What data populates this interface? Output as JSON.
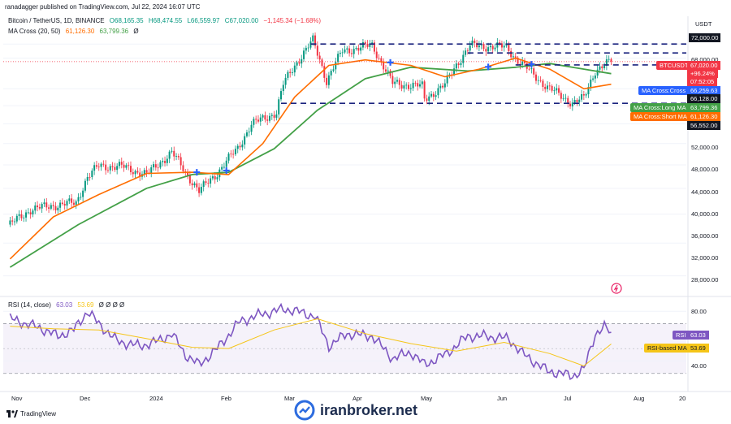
{
  "header": {
    "publisher_line": "ranadagger published on TradingView.com, Jul 22, 2024 16:07 UTC"
  },
  "legend": {
    "symbol": "Bitcoin / TetherUS, 1D, BINANCE",
    "o": "O68,165.35",
    "h": "H68,474.55",
    "l": "L66,559.97",
    "c": "C67,020.00",
    "chg": "−1,145.34 (−1.68%)",
    "ma_label": "MA Cross (20, 50)",
    "ma_short": "61,126.30",
    "ma_long": "63,799.36",
    "ma_extra": "Ø"
  },
  "rsi_legend": {
    "label": "RSI (14, close)",
    "rsi": "63.03",
    "rsi_ma": "53.69",
    "extra": "Ø Ø Ø Ø"
  },
  "currency": "USDT",
  "price_axis": [
    "72,000.00",
    "68,000.00",
    "60,000.00",
    "56,552.00",
    "52,000.00",
    "48,000.00",
    "44,000.00",
    "40,000.00",
    "36,000.00",
    "32,000.00",
    "28,000.00"
  ],
  "rsi_axis": [
    "80.00",
    "40.00"
  ],
  "time_axis": [
    "Nov",
    "Dec",
    "2024",
    "Feb",
    "Mar",
    "Apr",
    "May",
    "Jun",
    "Jul",
    "Aug",
    "20"
  ],
  "price_labels": {
    "btc_name": "BTCUSDT",
    "btc_price": "67,020.00",
    "btc_change": "+96.24%",
    "btc_time": "07:52:05",
    "ma_cross_name": "MA Cross:Cross",
    "ma_cross_value": "66,259.63",
    "level_66128": "66,128.00",
    "level_72000": "72,000.00",
    "level_56552": "56,552.00",
    "long_ma_name": "MA Cross:Long MA",
    "long_ma_value": "63,799.36",
    "short_ma_name": "MA Cross:Short MA",
    "short_ma_value": "61,126.30",
    "rsi_name": "RSI",
    "rsi_value": "63.03",
    "rsi_ma_name": "RSI-based MA",
    "rsi_ma_value": "53.69"
  },
  "footer": {
    "brand": "TradingView"
  },
  "watermark": "iranbroker.net",
  "colors": {
    "up": "#089981",
    "down": "#f23645",
    "short_ma": "#ff6d00",
    "long_ma": "#43a047",
    "rsi": "#7e57c2",
    "rsi_ma": "#f5c518",
    "level": "#1a237e",
    "cross": "#2962ff"
  },
  "chart_data": [
    {
      "type": "candlestick",
      "title": "Bitcoin / TetherUS, 1D, BINANCE",
      "x_range": [
        "2023-10-29",
        "2024-08-24"
      ],
      "ylim": [
        26000,
        78000
      ],
      "y_scale": "log",
      "close_path": [
        [
          "2023-11-01",
          34500
        ],
        [
          "2023-11-10",
          36700
        ],
        [
          "2023-11-20",
          37300
        ],
        [
          "2023-11-30",
          37700
        ],
        [
          "2023-12-05",
          41900
        ],
        [
          "2023-12-10",
          43800
        ],
        [
          "2023-12-20",
          43700
        ],
        [
          "2023-12-31",
          42300
        ],
        [
          "2024-01-11",
          46300
        ],
        [
          "2024-01-17",
          42700
        ],
        [
          "2024-01-23",
          39500
        ],
        [
          "2024-01-31",
          42600
        ],
        [
          "2024-02-09",
          47100
        ],
        [
          "2024-02-15",
          51900
        ],
        [
          "2024-02-26",
          54500
        ],
        [
          "2024-02-29",
          61100
        ],
        [
          "2024-03-05",
          66000
        ],
        [
          "2024-03-13",
          73000
        ],
        [
          "2024-03-19",
          62000
        ],
        [
          "2024-03-26",
          70000
        ],
        [
          "2024-04-08",
          71600
        ],
        [
          "2024-04-17",
          61300
        ],
        [
          "2024-04-30",
          60600
        ],
        [
          "2024-05-01",
          57500
        ],
        [
          "2024-05-10",
          61000
        ],
        [
          "2024-05-15",
          66200
        ],
        [
          "2024-05-21",
          71500
        ],
        [
          "2024-06-06",
          71100
        ],
        [
          "2024-06-11",
          67300
        ],
        [
          "2024-06-24",
          60300
        ],
        [
          "2024-07-05",
          56600
        ],
        [
          "2024-07-10",
          57700
        ],
        [
          "2024-07-15",
          64700
        ],
        [
          "2024-07-22",
          67020
        ]
      ],
      "series": [
        {
          "name": "MA Cross:Short MA",
          "points": [
            [
              "2023-11-01",
              30000
            ],
            [
              "2023-11-20",
              35600
            ],
            [
              "2023-12-10",
              39000
            ],
            [
              "2023-12-31",
              42500
            ],
            [
              "2024-01-20",
              42700
            ],
            [
              "2024-02-05",
              42300
            ],
            [
              "2024-02-20",
              48000
            ],
            [
              "2024-03-05",
              58000
            ],
            [
              "2024-03-20",
              66000
            ],
            [
              "2024-04-05",
              67500
            ],
            [
              "2024-04-25",
              66000
            ],
            [
              "2024-05-10",
              63000
            ],
            [
              "2024-05-25",
              65000
            ],
            [
              "2024-06-10",
              68000
            ],
            [
              "2024-06-25",
              65000
            ],
            [
              "2024-07-10",
              60000
            ],
            [
              "2024-07-22",
              61126
            ]
          ]
        },
        {
          "name": "MA Cross:Long MA",
          "points": [
            [
              "2023-11-01",
              29000
            ],
            [
              "2023-12-01",
              34500
            ],
            [
              "2023-12-31",
              40000
            ],
            [
              "2024-01-20",
              42300
            ],
            [
              "2024-02-05",
              42700
            ],
            [
              "2024-02-25",
              47000
            ],
            [
              "2024-03-15",
              55000
            ],
            [
              "2024-04-05",
              62500
            ],
            [
              "2024-04-25",
              65500
            ],
            [
              "2024-05-20",
              64500
            ],
            [
              "2024-06-10",
              65500
            ],
            [
              "2024-06-25",
              66500
            ],
            [
              "2024-07-10",
              65000
            ],
            [
              "2024-07-22",
              63799
            ]
          ]
        }
      ],
      "cross_points": [
        [
          "2024-01-22",
          42700
        ],
        [
          "2024-02-04",
          43000
        ],
        [
          "2024-04-16",
          66800
        ],
        [
          "2024-05-29",
          65600
        ],
        [
          "2024-06-17",
          66300
        ]
      ],
      "horizontal_levels": [
        72000,
        66128,
        56552
      ],
      "last_price": 67020
    },
    {
      "type": "line",
      "title": "RSI (14, close)",
      "ylim": [
        20,
        90
      ],
      "bands": [
        70,
        30
      ],
      "series": [
        {
          "name": "RSI",
          "points": [
            [
              "2023-11-01",
              74
            ],
            [
              "2023-11-08",
              70
            ],
            [
              "2023-11-15",
              66
            ],
            [
              "2023-11-22",
              60
            ],
            [
              "2023-11-29",
              65
            ],
            [
              "2023-12-05",
              80
            ],
            [
              "2023-12-10",
              70
            ],
            [
              "2023-12-18",
              56
            ],
            [
              "2023-12-28",
              52
            ],
            [
              "2024-01-05",
              56
            ],
            [
              "2024-01-11",
              62
            ],
            [
              "2024-01-17",
              45
            ],
            [
              "2024-01-23",
              37
            ],
            [
              "2024-01-31",
              50
            ],
            [
              "2024-02-10",
              72
            ],
            [
              "2024-02-20",
              78
            ],
            [
              "2024-03-01",
              82
            ],
            [
              "2024-03-08",
              79
            ],
            [
              "2024-03-14",
              76
            ],
            [
              "2024-03-20",
              52
            ],
            [
              "2024-03-28",
              62
            ],
            [
              "2024-04-08",
              60
            ],
            [
              "2024-04-17",
              42
            ],
            [
              "2024-04-25",
              47
            ],
            [
              "2024-05-01",
              37
            ],
            [
              "2024-05-10",
              45
            ],
            [
              "2024-05-20",
              60
            ],
            [
              "2024-05-27",
              60
            ],
            [
              "2024-06-07",
              58
            ],
            [
              "2024-06-13",
              46
            ],
            [
              "2024-06-24",
              32
            ],
            [
              "2024-07-05",
              28
            ],
            [
              "2024-07-10",
              33
            ],
            [
              "2024-07-15",
              62
            ],
            [
              "2024-07-19",
              67
            ],
            [
              "2024-07-22",
              63.03
            ]
          ]
        },
        {
          "name": "RSI-based MA",
          "points": [
            [
              "2023-11-01",
              68
            ],
            [
              "2023-11-20",
              66
            ],
            [
              "2023-12-10",
              65
            ],
            [
              "2023-12-31",
              58
            ],
            [
              "2024-01-20",
              51
            ],
            [
              "2024-02-05",
              50
            ],
            [
              "2024-02-25",
              65
            ],
            [
              "2024-03-15",
              74
            ],
            [
              "2024-04-05",
              62
            ],
            [
              "2024-04-25",
              54
            ],
            [
              "2024-05-15",
              48
            ],
            [
              "2024-06-05",
              55
            ],
            [
              "2024-06-25",
              46
            ],
            [
              "2024-07-10",
              36
            ],
            [
              "2024-07-22",
              53.69
            ]
          ]
        }
      ]
    }
  ]
}
